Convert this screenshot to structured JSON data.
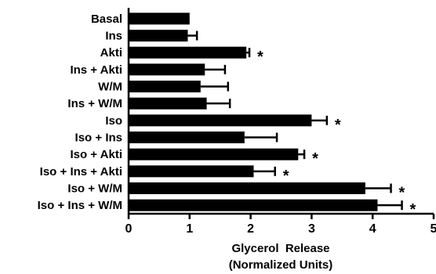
{
  "chart_data": {
    "type": "bar",
    "orientation": "horizontal",
    "categories": [
      "Basal",
      "Ins",
      "Akti",
      "Ins + Akti",
      "W/M",
      "Ins + W/M",
      "Iso",
      "Iso + Ins",
      "Iso + Akti",
      "Iso + Ins + Akti",
      "Iso + W/M",
      "Iso + Ins + W/M"
    ],
    "values": [
      1.0,
      0.97,
      1.93,
      1.25,
      1.18,
      1.28,
      3.0,
      1.9,
      2.78,
      2.05,
      3.88,
      4.08
    ],
    "errors": [
      0.0,
      0.15,
      0.05,
      0.33,
      0.45,
      0.38,
      0.25,
      0.53,
      0.1,
      0.35,
      0.42,
      0.4
    ],
    "significance": [
      "",
      "",
      "*",
      "",
      "",
      "",
      "*",
      "",
      "*",
      "*",
      "*",
      "*"
    ],
    "xlabel_line1": "Glycerol  Release",
    "xlabel_line2": "(Normalized Units)",
    "ylabel": "",
    "xlim": [
      0,
      5
    ],
    "xticks": [
      "0",
      "1",
      "2",
      "3",
      "4",
      "5"
    ],
    "grid": false,
    "bar_color": "#000000"
  }
}
